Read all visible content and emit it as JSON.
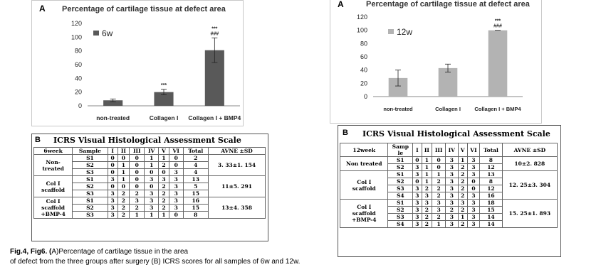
{
  "chart_data": [
    {
      "type": "bar",
      "panel": "A",
      "title": "Percentage of cartilage tissue at defect area",
      "legend": "6w",
      "categories": [
        "non-treated",
        "Collagen I",
        "Collagen I + BMP4"
      ],
      "values": [
        8,
        20,
        81
      ],
      "errors": [
        2,
        4,
        18
      ],
      "annotations": [
        "",
        "***",
        "***\n###"
      ],
      "ylim": [
        0,
        120
      ],
      "yticks": [
        0,
        20,
        40,
        60,
        80,
        100,
        120
      ],
      "bar_color": "#595959",
      "grid": false
    },
    {
      "type": "bar",
      "panel": "A",
      "title": "Percentage of cartilage tissue at defect area",
      "legend": "12w",
      "categories": [
        "non-treated",
        "Collagen I",
        "Collagen I + BMP4"
      ],
      "values": [
        28,
        43,
        100
      ],
      "errors": [
        12,
        6,
        0
      ],
      "annotations": [
        "",
        "",
        "***\n###"
      ],
      "ylim": [
        0,
        120
      ],
      "yticks": [
        0,
        20,
        40,
        60,
        80,
        100,
        120
      ],
      "bar_color": "#b3b3b3",
      "grid": false
    }
  ],
  "table6": {
    "letter": "B",
    "title": "ICRS Visual Histological Assessment Scale",
    "headers": [
      "6week",
      "Sample",
      "I",
      "II",
      "III",
      "IV",
      "V",
      "VI",
      "Total",
      "AVNE ±SD"
    ],
    "groups": [
      {
        "name": "Non-\ntreated",
        "avg": "3. 33±1. 154",
        "rows": [
          [
            "S1",
            "0",
            "0",
            "0",
            "1",
            "1",
            "0",
            "2"
          ],
          [
            "S2",
            "0",
            "1",
            "0",
            "1",
            "2",
            "0",
            "4"
          ],
          [
            "S3",
            "0",
            "1",
            "0",
            "0",
            "0",
            "3",
            "4"
          ]
        ]
      },
      {
        "name": "Col I\nscaffold",
        "avg": "11±5. 291",
        "rows": [
          [
            "S1",
            "3",
            "1",
            "0",
            "3",
            "3",
            "3",
            "13"
          ],
          [
            "S2",
            "0",
            "0",
            "0",
            "0",
            "2",
            "3",
            "5"
          ],
          [
            "S3",
            "3",
            "2",
            "2",
            "3",
            "2",
            "3",
            "15"
          ]
        ]
      },
      {
        "name": "Col I\nscaffold\n+BMP-4",
        "avg": "13±4. 358",
        "rows": [
          [
            "S1",
            "3",
            "2",
            "3",
            "3",
            "2",
            "3",
            "16"
          ],
          [
            "S2",
            "3",
            "2",
            "2",
            "3",
            "2",
            "3",
            "15"
          ],
          [
            "S3",
            "3",
            "2",
            "1",
            "1",
            "1",
            "0",
            "8"
          ]
        ]
      }
    ]
  },
  "table12": {
    "letter": "B",
    "title": "ICRS Visual Histological Assessment Scale",
    "headers": [
      "12week",
      "Samp\nle",
      "I",
      "II",
      "III",
      "IV",
      "V",
      "VI",
      "Total",
      "AVNE ±SD"
    ],
    "groups": [
      {
        "name": "Non treated",
        "avg": "10±2. 828",
        "rows": [
          [
            "S1",
            "0",
            "1",
            "0",
            "3",
            "1",
            "3",
            "8"
          ],
          [
            "S2",
            "3",
            "1",
            "0",
            "3",
            "2",
            "3",
            "12"
          ]
        ]
      },
      {
        "name": "Col I\nscaffold",
        "avg": "12. 25±3. 304",
        "rows": [
          [
            "S1",
            "3",
            "1",
            "1",
            "3",
            "2",
            "3",
            "13"
          ],
          [
            "S2",
            "0",
            "1",
            "2",
            "3",
            "2",
            "0",
            "8"
          ],
          [
            "S3",
            "3",
            "2",
            "2",
            "3",
            "2",
            "0",
            "12"
          ],
          [
            "S4",
            "3",
            "3",
            "2",
            "3",
            "2",
            "3",
            "16"
          ]
        ]
      },
      {
        "name": "Col I\nscaffold\n+BMP-4",
        "avg": "15. 25±1. 893",
        "rows": [
          [
            "S1",
            "3",
            "3",
            "3",
            "3",
            "3",
            "3",
            "18"
          ],
          [
            "S2",
            "3",
            "2",
            "3",
            "2",
            "2",
            "3",
            "15"
          ],
          [
            "S3",
            "3",
            "2",
            "2",
            "3",
            "1",
            "3",
            "14"
          ],
          [
            "S4",
            "3",
            "2",
            "1",
            "3",
            "2",
            "3",
            "14"
          ]
        ]
      }
    ]
  },
  "caption": {
    "bold": "Fig.4, Fig6. (",
    "line1": "A)Percentage of cartilage tissue in the area",
    "line2": "of defect from the three groups after surgery (B) ICRS scores for all samples of 6w and 12w."
  }
}
